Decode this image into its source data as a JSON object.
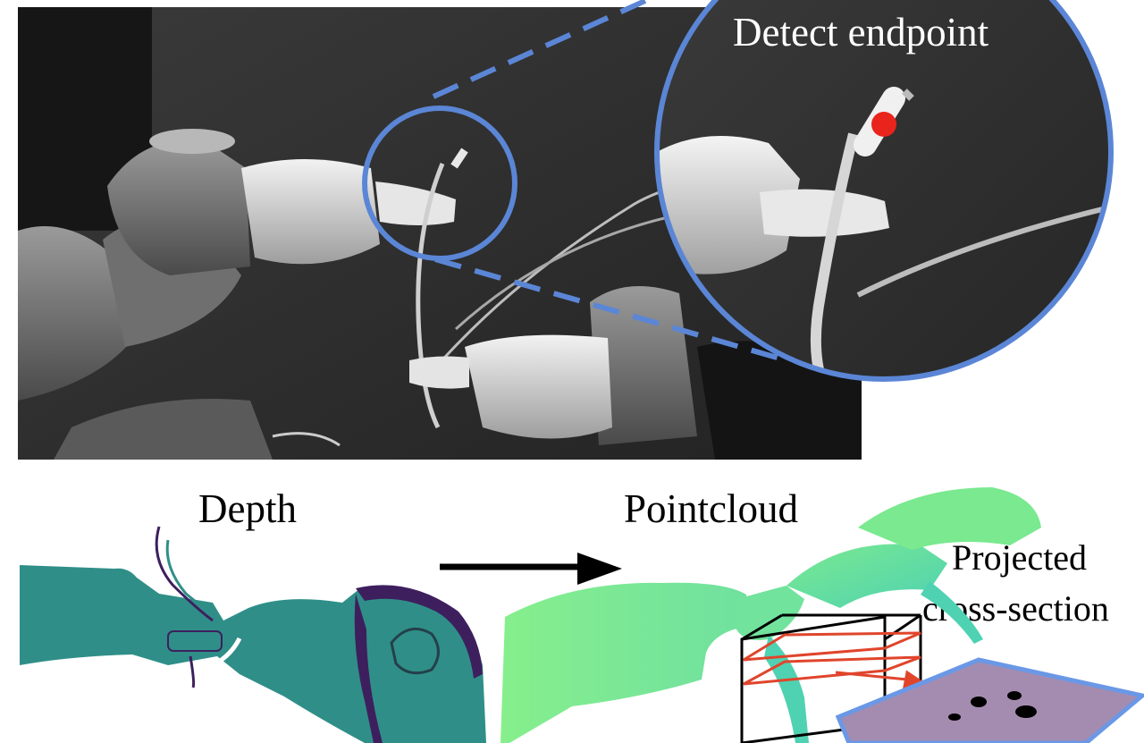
{
  "labels": {
    "detect": "Detect endpoint",
    "depth": "Depth",
    "pointcloud": "Pointcloud",
    "projected_line1": "Projected",
    "projected_line2": "cross-section"
  },
  "colors": {
    "zoom_circle": "#5b86d6",
    "endpoint_marker": "#e8241c",
    "depth_fill": "#2f8f88",
    "depth_dark": "#3d1f5e",
    "cloud_light": "#86ef8c",
    "cloud_teal": "#4fd2b2",
    "box_frame": "#000000",
    "cross_section": "#e0452c",
    "plane_fill": "#a48cb0",
    "plane_edge": "#6a98e6"
  },
  "icons": {
    "arrow": "right-arrow-icon",
    "endpoint": "red-dot-icon"
  }
}
